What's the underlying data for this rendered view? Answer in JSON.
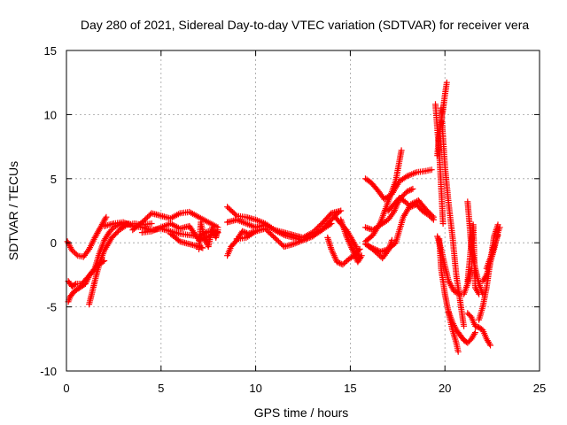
{
  "chart_data": {
    "type": "scatter",
    "title": "Day 280 of 2021, Sidereal Day-to-day VTEC variation (SDTVAR) for receiver vera",
    "xlabel": "GPS time / hours",
    "ylabel": "SDTVAR / TECUs",
    "xlim": [
      0,
      25
    ],
    "ylim": [
      -10,
      15
    ],
    "x_ticks": [
      0,
      5,
      10,
      15,
      20,
      25
    ],
    "x_tick_labels": [
      "0",
      "5",
      "10",
      "15",
      "20",
      "25"
    ],
    "y_ticks": [
      -10,
      -5,
      0,
      5,
      10,
      15
    ],
    "y_tick_labels": [
      "-10",
      "-5",
      "0",
      "5",
      "10",
      "15"
    ],
    "grid": true,
    "marker": "+",
    "series": [
      {
        "name": "SDTVAR",
        "color": "#ff0000",
        "segments": [
          {
            "x": [
              0.05,
              0.3,
              0.6,
              0.9,
              1.2,
              1.5,
              1.8,
              2.1
            ],
            "y": [
              0.1,
              -0.6,
              -1.0,
              -1.1,
              -0.5,
              0.4,
              1.2,
              2.0
            ]
          },
          {
            "x": [
              0.1,
              0.3,
              0.5,
              0.8,
              1.0,
              1.3,
              1.5,
              1.7,
              2.0,
              2.3,
              2.6,
              3.0,
              3.3
            ],
            "y": [
              -3.0,
              -3.4,
              -3.2,
              -3.2,
              -2.9,
              -2.4,
              -2.0,
              -1.0,
              0.2,
              0.9,
              1.3,
              1.5,
              1.5
            ]
          },
          {
            "x": [
              0.1,
              0.2,
              0.4,
              0.6,
              0.8,
              1.0,
              1.2,
              1.4,
              1.6,
              1.8,
              2.0
            ],
            "y": [
              -4.6,
              -4.2,
              -3.8,
              -3.6,
              -3.4,
              -3.2,
              -2.6,
              -2.2,
              -1.8,
              -1.6,
              -1.4
            ]
          },
          {
            "x": [
              1.2,
              1.4,
              1.6,
              1.8,
              2.0,
              2.4,
              2.8,
              3.2,
              3.6,
              4.0,
              4.5
            ],
            "y": [
              -4.8,
              -3.6,
              -2.4,
              -1.4,
              -0.6,
              0.4,
              1.0,
              1.4,
              1.5,
              1.4,
              1.5
            ]
          },
          {
            "x": [
              2.0,
              2.5,
              3.0,
              3.5,
              4.0,
              4.5,
              5.0,
              5.5,
              6.0,
              6.5,
              7.0,
              7.5,
              8.0
            ],
            "y": [
              1.3,
              1.5,
              1.6,
              1.3,
              1.2,
              1.0,
              1.1,
              0.9,
              0.7,
              0.6,
              0.5,
              0.9,
              0.8
            ]
          },
          {
            "x": [
              3.5,
              4.0,
              4.5,
              5.0,
              5.5,
              6.0,
              6.5,
              7.0,
              7.5,
              8.0
            ],
            "y": [
              1.0,
              1.6,
              2.3,
              2.1,
              1.9,
              2.3,
              2.4,
              2.0,
              1.6,
              1.2
            ]
          },
          {
            "x": [
              4.0,
              4.5,
              5.0,
              5.5,
              6.0,
              6.5,
              7.0,
              7.5,
              8.0
            ],
            "y": [
              0.8,
              0.9,
              1.2,
              1.5,
              1.1,
              1.3,
              0.2,
              0.5,
              0.8
            ]
          },
          {
            "x": [
              5.5,
              6.0,
              6.5,
              7.0,
              7.2
            ],
            "y": [
              0.7,
              0.1,
              -0.1,
              -0.3,
              -0.4
            ]
          },
          {
            "x": [
              7.0,
              7.1,
              7.3,
              7.5,
              7.7,
              7.9,
              8.0
            ],
            "y": [
              -0.5,
              1.6,
              0.3,
              -0.3,
              1.2,
              0.4,
              1.0
            ]
          },
          {
            "x": [
              8.5,
              8.7,
              9.0,
              9.3,
              9.6,
              10.0
            ],
            "y": [
              -1.0,
              -0.3,
              0.2,
              0.9,
              0.7,
              0.9
            ]
          },
          {
            "x": [
              8.5,
              9.0,
              9.5,
              10.0,
              10.5,
              11.0,
              11.5,
              12.0,
              12.5,
              13.0,
              13.5,
              14.0,
              14.5
            ],
            "y": [
              2.8,
              2.1,
              2.0,
              1.8,
              1.5,
              1.0,
              0.8,
              0.6,
              0.4,
              0.8,
              1.5,
              2.3,
              2.5
            ]
          },
          {
            "x": [
              8.5,
              9.0,
              9.5,
              10.0,
              10.5,
              11.0,
              11.5,
              12.0,
              12.5,
              13.0,
              13.5,
              14.0
            ],
            "y": [
              1.6,
              1.8,
              1.5,
              1.2,
              1.4,
              1.0,
              0.6,
              0.4,
              0.2,
              0.5,
              1.0,
              1.5
            ]
          },
          {
            "x": [
              9.0,
              9.5,
              10.0,
              10.5,
              11.0,
              11.5,
              12.0,
              12.5,
              13.0,
              13.5,
              14.0,
              14.4
            ],
            "y": [
              0.3,
              0.4,
              0.9,
              1.1,
              0.4,
              -0.3,
              -0.1,
              0.2,
              0.5,
              1.0,
              1.8,
              2.4
            ]
          },
          {
            "x": [
              13.8,
              14.0,
              14.3,
              14.6,
              14.9,
              15.2,
              15.5
            ],
            "y": [
              0.4,
              -0.5,
              -1.5,
              -1.7,
              -1.3,
              -1.0,
              -0.5
            ]
          },
          {
            "x": [
              14.2,
              14.5,
              14.8,
              15.0,
              15.3,
              15.5
            ],
            "y": [
              2.0,
              1.5,
              1.0,
              0.5,
              -0.3,
              -1.2
            ]
          },
          {
            "x": [
              14.5,
              14.8,
              15.1,
              15.4,
              15.6
            ],
            "y": [
              1.8,
              0.5,
              -0.5,
              -1.5,
              -1.0
            ]
          },
          {
            "x": [
              15.8,
              16.2,
              16.6,
              17.0,
              17.4,
              17.7
            ],
            "y": [
              0.1,
              0.6,
              1.6,
              3.2,
              4.8,
              7.2
            ]
          },
          {
            "x": [
              15.8,
              16.1,
              16.5,
              16.8,
              17.2,
              17.6,
              18.0,
              18.5,
              19.0,
              19.3
            ],
            "y": [
              5.0,
              4.7,
              4.0,
              3.4,
              3.8,
              4.8,
              5.2,
              5.5,
              5.6,
              5.7
            ]
          },
          {
            "x": [
              15.8,
              16.2,
              16.6,
              17.0,
              17.3,
              17.6,
              18.0,
              18.3
            ],
            "y": [
              1.2,
              1.0,
              1.4,
              1.8,
              2.4,
              3.4,
              4.0,
              4.2
            ]
          },
          {
            "x": [
              16.0,
              16.3,
              16.6,
              17.0,
              17.4,
              17.8,
              18.2,
              18.6,
              19.0,
              19.4
            ],
            "y": [
              -0.3,
              -0.5,
              -0.7,
              -0.5,
              0.0,
              2.0,
              3.0,
              3.3,
              2.6,
              2.0
            ]
          },
          {
            "x": [
              15.8,
              16.1,
              16.4,
              16.7,
              17.0,
              17.2
            ],
            "y": [
              -0.1,
              -0.4,
              -0.8,
              -1.2,
              -0.6,
              0.2
            ]
          },
          {
            "x": [
              17.0,
              17.3,
              17.6,
              17.9,
              18.2,
              18.5,
              18.8,
              19.1,
              19.4
            ],
            "y": [
              2.5,
              3.0,
              3.5,
              3.2,
              2.8,
              3.0,
              2.5,
              2.2,
              1.8
            ]
          },
          {
            "x": [
              19.6,
              19.7,
              19.8,
              19.9,
              20.0,
              20.1
            ],
            "y": [
              6.8,
              8.4,
              9.5,
              10.4,
              11.5,
              12.5
            ]
          },
          {
            "x": [
              19.5,
              19.6,
              19.7,
              19.8,
              19.9
            ],
            "y": [
              10.8,
              8.9,
              7.0,
              4.4,
              1.5
            ]
          },
          {
            "x": [
              19.8,
              20.0,
              20.2,
              20.4,
              20.6,
              20.8,
              21.0
            ],
            "y": [
              10.5,
              6.0,
              3.0,
              0.5,
              -2.5,
              -4.5,
              -6.5
            ]
          },
          {
            "x": [
              19.7,
              19.8,
              20.0,
              20.2,
              20.4,
              20.6,
              20.7
            ],
            "y": [
              0.3,
              -2.0,
              -4.0,
              -5.5,
              -6.8,
              -7.8,
              -8.5
            ]
          },
          {
            "x": [
              19.6,
              19.8,
              20.0,
              20.2,
              20.5,
              20.8,
              21.0,
              21.2,
              21.4
            ],
            "y": [
              0.5,
              -0.5,
              -1.8,
              -3.0,
              -3.8,
              -4.0,
              -4.0,
              -3.2,
              -2.0
            ]
          },
          {
            "x": [
              20.2,
              20.4,
              20.6,
              20.8,
              21.0,
              21.2,
              21.4,
              21.6
            ],
            "y": [
              -5.4,
              -6.2,
              -6.8,
              -7.2,
              -7.6,
              -7.8,
              -7.5,
              -7.0
            ]
          },
          {
            "x": [
              21.2,
              21.4,
              21.6,
              21.8,
              22.0,
              22.2,
              22.4
            ],
            "y": [
              -5.5,
              -5.8,
              -6.5,
              -6.6,
              -6.8,
              -7.5,
              -8.0
            ]
          },
          {
            "x": [
              21.2,
              21.3,
              21.4,
              21.5,
              21.6,
              21.8
            ],
            "y": [
              -3.0,
              -1.5,
              0.0,
              1.4,
              -3.5,
              -4.0
            ]
          },
          {
            "x": [
              21.2,
              21.3,
              21.4,
              21.6,
              21.8,
              22.0
            ],
            "y": [
              3.2,
              1.5,
              -0.5,
              -2.0,
              -3.2,
              -4.0
            ]
          },
          {
            "x": [
              21.8,
              22.0,
              22.2,
              22.4,
              22.6,
              22.8
            ],
            "y": [
              -6.0,
              -5.0,
              -3.5,
              -1.5,
              0.5,
              1.4
            ]
          },
          {
            "x": [
              22.0,
              22.2,
              22.4,
              22.6,
              22.8,
              22.9
            ],
            "y": [
              -3.0,
              -2.5,
              -1.5,
              -0.5,
              0.8,
              1.2
            ]
          },
          {
            "x": [
              22.2,
              22.4,
              22.6,
              22.8
            ],
            "y": [
              -2.0,
              -1.2,
              -0.3,
              0.6
            ]
          }
        ]
      }
    ]
  }
}
